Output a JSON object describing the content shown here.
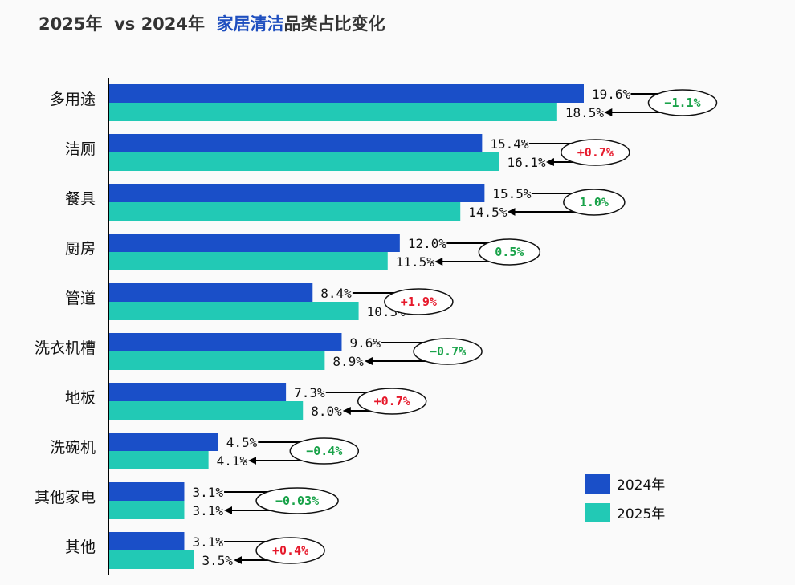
{
  "title": {
    "prefix": "2025年  vs 2024年  ",
    "highlight": "家居清洁",
    "suffix": "品类占比变化"
  },
  "colors": {
    "series_2024": "#1a4fc8",
    "series_2025": "#22c9b5",
    "positive": "#e6192b",
    "negative": "#1aa34a",
    "title_highlight": "#1f4fbf"
  },
  "chart_data": {
    "type": "bar",
    "orientation": "horizontal",
    "title": "2025年  vs 2024年  家居清洁品类占比变化",
    "categories": [
      "多用途",
      "洁厕",
      "餐具",
      "厨房",
      "管道",
      "洗衣机槽",
      "地板",
      "洗碗机",
      "其他家电",
      "其他"
    ],
    "series": [
      {
        "name": "2024年",
        "values": [
          19.6,
          15.4,
          15.5,
          12.0,
          8.4,
          9.6,
          7.3,
          4.5,
          3.1,
          3.1
        ],
        "labels": [
          "19.6%",
          "15.4%",
          "15.5%",
          "12.0%",
          "8.4%",
          "9.6%",
          "7.3%",
          "4.5%",
          "3.1%",
          "3.1%"
        ]
      },
      {
        "name": "2025年",
        "values": [
          18.5,
          16.1,
          14.5,
          11.5,
          10.3,
          8.9,
          8.0,
          4.1,
          3.1,
          3.5
        ],
        "labels": [
          "18.5%",
          "16.1%",
          "14.5%",
          "11.5%",
          "10.3%",
          "8.9%",
          "8.0%",
          "4.1%",
          "3.1%",
          "3.5%"
        ]
      }
    ],
    "changes": [
      {
        "text": "−1.1%",
        "direction": "down"
      },
      {
        "text": "+0.7%",
        "direction": "up"
      },
      {
        "text": "1.0%",
        "direction": "down"
      },
      {
        "text": "0.5%",
        "direction": "down"
      },
      {
        "text": "+1.9%",
        "direction": "up"
      },
      {
        "text": "−0.7%",
        "direction": "down"
      },
      {
        "text": "+0.7%",
        "direction": "up"
      },
      {
        "text": "−0.4%",
        "direction": "down"
      },
      {
        "text": "−0.03%",
        "direction": "down"
      },
      {
        "text": "+0.4%",
        "direction": "up"
      }
    ],
    "xlim": [
      0,
      20
    ],
    "legend": {
      "position": "bottom-right",
      "entries": [
        "2024年",
        "2025年"
      ]
    },
    "grid": false
  }
}
